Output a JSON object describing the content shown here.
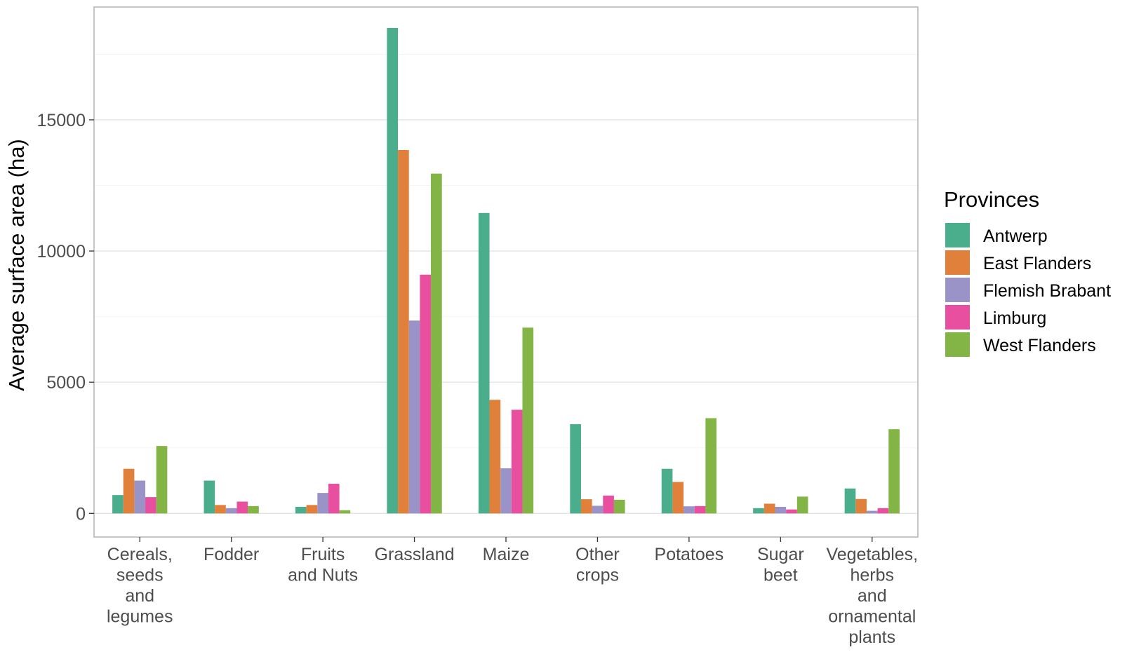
{
  "chart_data": {
    "type": "bar",
    "ylabel": "Average surface area (ha)",
    "xlabel": "",
    "ylim": [
      -900,
      19300
    ],
    "yticks": [
      0,
      5000,
      10000,
      15000
    ],
    "y_tick_labels": [
      "0",
      "5000",
      "10000",
      "15000"
    ],
    "grid": true,
    "legend": {
      "title": "Provinces",
      "placement": "right"
    },
    "categories": [
      [
        "Cereals,",
        "seeds",
        "and",
        "legumes"
      ],
      [
        "Fodder"
      ],
      [
        "Fruits",
        "and Nuts"
      ],
      [
        "Grassland"
      ],
      [
        "Maize"
      ],
      [
        "Other",
        "crops"
      ],
      [
        "Potatoes"
      ],
      [
        "Sugar",
        "beet"
      ],
      [
        "Vegetables,",
        "herbs",
        "and",
        "ornamental",
        "plants"
      ]
    ],
    "series": [
      {
        "name": "Antwerp",
        "color": "#4aae8c",
        "values": [
          700,
          1250,
          250,
          18500,
          11450,
          3400,
          1700,
          200,
          950
        ]
      },
      {
        "name": "East Flanders",
        "color": "#e0803a",
        "values": [
          1700,
          320,
          320,
          13850,
          4330,
          540,
          1200,
          370,
          550
        ]
      },
      {
        "name": "Flemish Brabant",
        "color": "#9a93c8",
        "values": [
          1250,
          200,
          780,
          7350,
          1720,
          290,
          270,
          250,
          100
        ]
      },
      {
        "name": "Limburg",
        "color": "#e84f9f",
        "values": [
          620,
          450,
          1130,
          9100,
          3950,
          680,
          280,
          150,
          200
        ]
      },
      {
        "name": "West Flanders",
        "color": "#82b545",
        "values": [
          2570,
          280,
          120,
          12950,
          7080,
          520,
          3630,
          640,
          3210
        ]
      }
    ]
  }
}
